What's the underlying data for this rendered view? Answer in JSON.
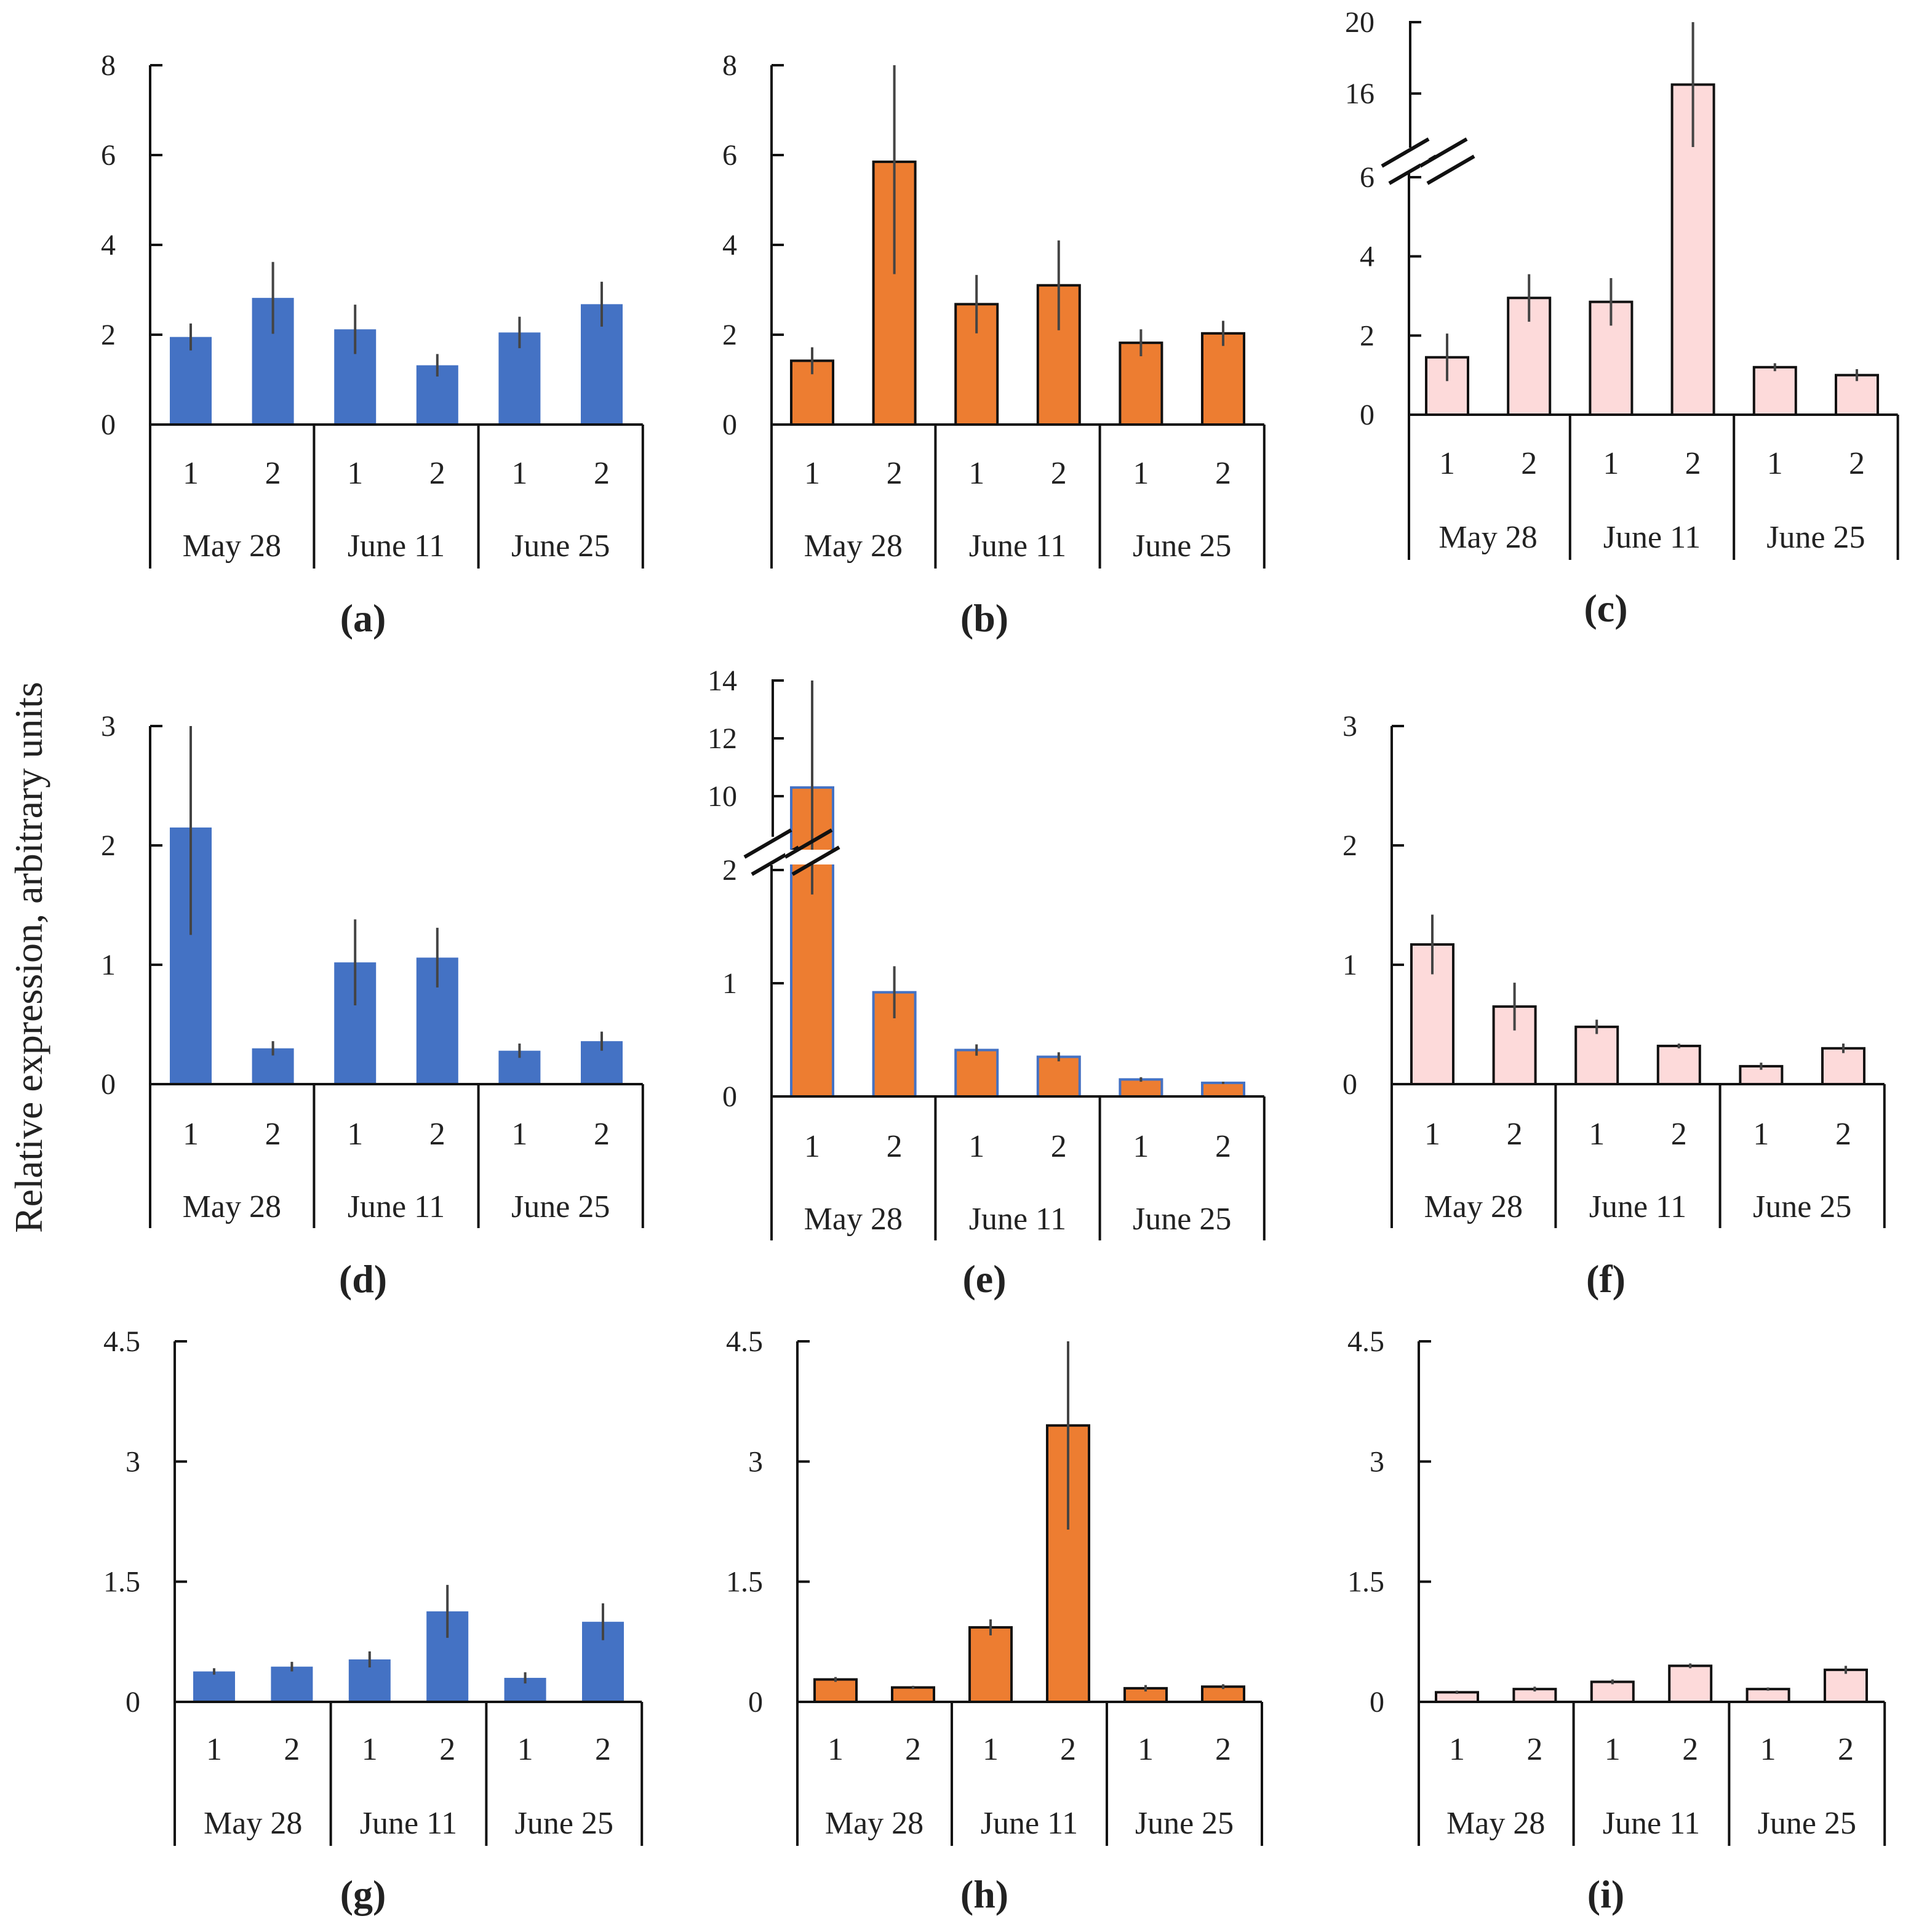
{
  "ylabel": "Relative expression, arbitrary units",
  "colors": {
    "blue": "#4472c4",
    "orange": "#ed7d31",
    "pink": "#fddada",
    "error": "#444444"
  },
  "chart_data": [
    {
      "type": "bar",
      "panel": "(a)",
      "letter": "a",
      "categories": [
        "1",
        "2",
        "1",
        "2",
        "1",
        "2"
      ],
      "groups": [
        "May 28",
        "June 11",
        "June 25"
      ],
      "values": [
        1.95,
        2.82,
        2.12,
        1.32,
        2.05,
        2.68
      ],
      "errors": [
        0.3,
        0.8,
        0.55,
        0.25,
        0.35,
        0.5
      ],
      "yticks": [
        "0",
        "2",
        "4",
        "6",
        "8"
      ],
      "ylim": [
        0,
        8
      ],
      "color": "blue"
    },
    {
      "type": "bar",
      "panel": "(b)",
      "letter": "b",
      "categories": [
        "1",
        "2",
        "1",
        "2",
        "1",
        "2"
      ],
      "groups": [
        "May 28",
        "June 11",
        "June 25"
      ],
      "values": [
        1.42,
        5.85,
        2.68,
        3.1,
        1.82,
        2.03
      ],
      "errors": [
        0.3,
        2.5,
        0.65,
        1.0,
        0.3,
        0.28
      ],
      "yticks": [
        "0",
        "2",
        "4",
        "6",
        "8"
      ],
      "ylim": [
        0,
        8
      ],
      "color": "orange"
    },
    {
      "type": "bar",
      "panel": "(c)",
      "letter": "c",
      "categories": [
        "1",
        "2",
        "1",
        "2",
        "1",
        "2"
      ],
      "groups": [
        "May 28",
        "June 11",
        "June 25"
      ],
      "values": [
        1.45,
        2.95,
        2.85,
        16.5,
        1.2,
        1.0
      ],
      "errors": [
        0.6,
        0.6,
        0.6,
        3.5,
        0.1,
        0.15
      ],
      "yticks": [
        "0",
        "2",
        "4",
        "6",
        "16",
        "20"
      ],
      "ylim": [
        0,
        20
      ],
      "axis_break": [
        6,
        16
      ],
      "color": "pink"
    },
    {
      "type": "bar",
      "panel": "(d)",
      "letter": "d",
      "categories": [
        "1",
        "2",
        "1",
        "2",
        "1",
        "2"
      ],
      "groups": [
        "May 28",
        "June 11",
        "June 25"
      ],
      "values": [
        2.15,
        0.3,
        1.02,
        1.06,
        0.28,
        0.36
      ],
      "errors": [
        0.9,
        0.06,
        0.36,
        0.25,
        0.06,
        0.08
      ],
      "yticks": [
        "0",
        "1",
        "2",
        "3"
      ],
      "ylim": [
        0,
        3
      ],
      "color": "blue"
    },
    {
      "type": "bar",
      "panel": "(e)",
      "letter": "e",
      "categories": [
        "1",
        "2",
        "1",
        "2",
        "1",
        "2"
      ],
      "groups": [
        "May 28",
        "June 11",
        "June 25"
      ],
      "values": [
        10.3,
        0.92,
        0.41,
        0.35,
        0.15,
        0.12
      ],
      "errors": [
        3.7,
        0.23,
        0.05,
        0.04,
        0.02,
        0.01
      ],
      "yticks": [
        "0",
        "1",
        "2",
        "10",
        "12",
        "14"
      ],
      "ylim": [
        0,
        14
      ],
      "axis_break": [
        2,
        9.3
      ],
      "color": "orange"
    },
    {
      "type": "bar",
      "panel": "(f)",
      "letter": "f",
      "categories": [
        "1",
        "2",
        "1",
        "2",
        "1",
        "2"
      ],
      "groups": [
        "May 28",
        "June 11",
        "June 25"
      ],
      "values": [
        1.17,
        0.65,
        0.48,
        0.32,
        0.15,
        0.3
      ],
      "errors": [
        0.25,
        0.2,
        0.06,
        0.02,
        0.03,
        0.04
      ],
      "yticks": [
        "0",
        "1",
        "2",
        "3"
      ],
      "ylim": [
        0,
        3
      ],
      "color": "pink"
    },
    {
      "type": "bar",
      "panel": "(g)",
      "letter": "g",
      "categories": [
        "1",
        "2",
        "1",
        "2",
        "1",
        "2"
      ],
      "groups": [
        "May 28",
        "June 11",
        "June 25"
      ],
      "values": [
        0.38,
        0.44,
        0.53,
        1.13,
        0.3,
        1.0
      ],
      "errors": [
        0.04,
        0.06,
        0.1,
        0.33,
        0.07,
        0.23
      ],
      "yticks": [
        "0",
        "1.5",
        "3",
        "4.5"
      ],
      "ylim": [
        0,
        4.5
      ],
      "color": "blue"
    },
    {
      "type": "bar",
      "panel": "(h)",
      "letter": "h",
      "categories": [
        "1",
        "2",
        "1",
        "2",
        "1",
        "2"
      ],
      "groups": [
        "May 28",
        "June 11",
        "June 25"
      ],
      "values": [
        0.28,
        0.18,
        0.93,
        3.45,
        0.17,
        0.19
      ],
      "errors": [
        0.03,
        0.02,
        0.1,
        1.3,
        0.04,
        0.03
      ],
      "yticks": [
        "0",
        "1.5",
        "3",
        "4.5"
      ],
      "ylim": [
        0,
        4.5
      ],
      "color": "orange"
    },
    {
      "type": "bar",
      "panel": "(i)",
      "letter": "i",
      "categories": [
        "1",
        "2",
        "1",
        "2",
        "1",
        "2"
      ],
      "groups": [
        "May 28",
        "June 11",
        "June 25"
      ],
      "values": [
        0.12,
        0.16,
        0.25,
        0.45,
        0.16,
        0.4
      ],
      "errors": [
        0.02,
        0.03,
        0.03,
        0.03,
        0.02,
        0.05
      ],
      "yticks": [
        "0",
        "1.5",
        "3",
        "4.5"
      ],
      "ylim": [
        0,
        4.5
      ],
      "color": "pink"
    }
  ]
}
